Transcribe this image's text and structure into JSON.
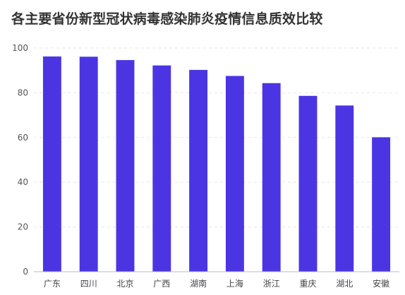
{
  "chart_data": {
    "type": "bar",
    "title": "各主要省份新型冠状病毒感染肺炎疫情信息质效比较",
    "categories": [
      "广东",
      "四川",
      "北京",
      "广西",
      "湖南",
      "上海",
      "浙江",
      "重庆",
      "湖北",
      "安徽"
    ],
    "values": [
      96.2,
      96.1,
      94.6,
      92.2,
      90.2,
      87.5,
      84.3,
      78.6,
      74.3,
      60.1
    ],
    "ylim": [
      0,
      100
    ],
    "yticks": [
      0,
      20,
      40,
      60,
      80,
      100
    ],
    "xlabel": "",
    "ylabel": "",
    "grid": true,
    "legend": "none",
    "bar_color": "#4b35e3"
  }
}
